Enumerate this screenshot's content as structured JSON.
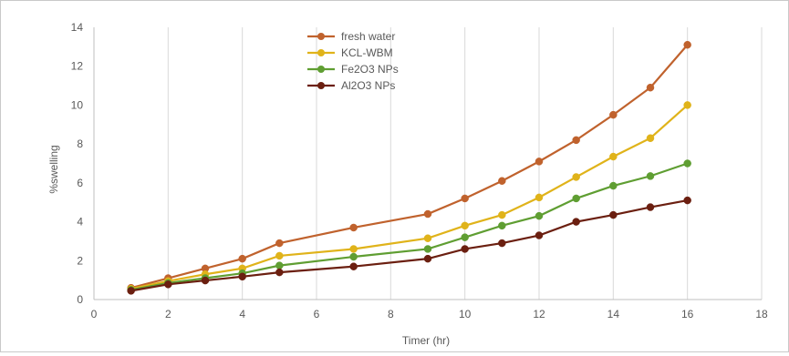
{
  "chart_data": {
    "type": "line",
    "title": "",
    "xlabel": "Timer (hr)",
    "ylabel": "%swelling",
    "xlim": [
      0,
      18
    ],
    "ylim": [
      0,
      14
    ],
    "xticks": [
      0,
      2,
      4,
      6,
      8,
      10,
      12,
      14,
      16,
      18
    ],
    "yticks": [
      0,
      2,
      4,
      6,
      8,
      10,
      12,
      14
    ],
    "grid": "vertical",
    "legend": "top-center",
    "x": [
      1,
      2,
      3,
      4,
      5,
      7,
      9,
      10,
      11,
      12,
      13,
      14,
      15,
      16
    ],
    "series": [
      {
        "name": "fresh water",
        "color": "#c0622d",
        "values": [
          0.6,
          1.1,
          1.6,
          2.1,
          2.9,
          3.7,
          4.4,
          5.2,
          6.1,
          7.1,
          8.2,
          9.5,
          10.9,
          13.1
        ]
      },
      {
        "name": "KCL-WBM",
        "color": "#e0b31a",
        "values": [
          0.55,
          0.95,
          1.3,
          1.6,
          2.25,
          2.6,
          3.15,
          3.8,
          4.35,
          5.25,
          6.3,
          7.35,
          8.3,
          10.0
        ]
      },
      {
        "name": "Fe2O3 NPs",
        "color": "#5f9e32",
        "values": [
          0.5,
          0.85,
          1.1,
          1.35,
          1.75,
          2.2,
          2.6,
          3.2,
          3.8,
          4.3,
          5.2,
          5.85,
          6.35,
          7.0
        ]
      },
      {
        "name": "Al2O3 NPs",
        "color": "#6b1f10",
        "values": [
          0.45,
          0.78,
          0.98,
          1.18,
          1.4,
          1.7,
          2.1,
          2.6,
          2.9,
          3.3,
          4.0,
          4.35,
          4.75,
          5.1
        ]
      }
    ]
  }
}
